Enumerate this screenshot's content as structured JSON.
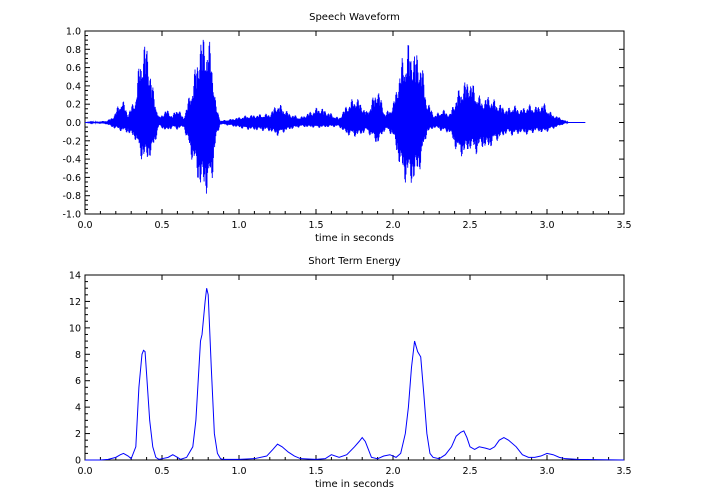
{
  "colors": {
    "series": "#0000ff",
    "axes": "#000000",
    "background": "#ffffff"
  },
  "chart_data": [
    {
      "type": "line",
      "title": "Speech Waveform",
      "xlabel": "time in seconds",
      "ylabel": "",
      "xlim": [
        0,
        3.5
      ],
      "ylim": [
        -1.0,
        1.0
      ],
      "grid": false,
      "xticks": [
        "0.0",
        "0.5",
        "1.0",
        "1.5",
        "2.0",
        "2.5",
        "3.0",
        "3.5"
      ],
      "yticks": [
        "1.0",
        "0.8",
        "0.6",
        "0.4",
        "0.2",
        "0.0",
        "-0.2",
        "-0.4",
        "-0.6",
        "-0.8",
        "-1.0"
      ],
      "envelope": {
        "t": [
          0.0,
          0.14,
          0.18,
          0.24,
          0.28,
          0.33,
          0.36,
          0.4,
          0.44,
          0.48,
          0.53,
          0.57,
          0.6,
          0.64,
          0.7,
          0.75,
          0.78,
          0.82,
          0.85,
          0.88,
          0.95,
          1.05,
          1.2,
          1.25,
          1.28,
          1.33,
          1.4,
          1.52,
          1.6,
          1.65,
          1.7,
          1.76,
          1.79,
          1.83,
          1.9,
          1.95,
          2.0,
          2.06,
          2.1,
          2.14,
          2.18,
          2.22,
          2.27,
          2.32,
          2.37,
          2.42,
          2.46,
          2.5,
          2.54,
          2.58,
          2.62,
          2.66,
          2.7,
          2.74,
          2.78,
          2.83,
          2.88,
          2.93,
          2.98,
          3.03,
          3.08,
          3.11,
          3.14,
          3.25
        ],
        "upper": [
          0.0,
          0.02,
          0.06,
          0.28,
          0.1,
          0.3,
          0.8,
          0.92,
          0.4,
          0.06,
          0.15,
          0.08,
          0.18,
          0.05,
          0.45,
          0.95,
          0.98,
          0.85,
          0.2,
          0.02,
          0.04,
          0.08,
          0.1,
          0.22,
          0.18,
          0.1,
          0.06,
          0.18,
          0.1,
          0.05,
          0.2,
          0.3,
          0.22,
          0.12,
          0.4,
          0.1,
          0.2,
          0.72,
          0.88,
          0.8,
          0.75,
          0.25,
          0.08,
          0.15,
          0.1,
          0.34,
          0.45,
          0.5,
          0.35,
          0.25,
          0.3,
          0.25,
          0.2,
          0.15,
          0.2,
          0.15,
          0.2,
          0.18,
          0.22,
          0.1,
          0.06,
          0.03,
          0.0,
          0.0
        ],
        "lower": [
          0.0,
          -0.02,
          -0.06,
          -0.1,
          -0.12,
          -0.2,
          -0.4,
          -0.44,
          -0.35,
          -0.04,
          -0.1,
          -0.06,
          -0.08,
          -0.05,
          -0.45,
          -0.75,
          -0.8,
          -0.75,
          -0.2,
          -0.02,
          -0.04,
          -0.08,
          -0.1,
          -0.15,
          -0.12,
          -0.08,
          -0.05,
          -0.06,
          -0.05,
          -0.05,
          -0.14,
          -0.16,
          -0.14,
          -0.1,
          -0.25,
          -0.08,
          -0.15,
          -0.62,
          -0.7,
          -0.68,
          -0.5,
          -0.12,
          -0.06,
          -0.1,
          -0.12,
          -0.36,
          -0.38,
          -0.3,
          -0.35,
          -0.28,
          -0.3,
          -0.22,
          -0.18,
          -0.12,
          -0.15,
          -0.12,
          -0.14,
          -0.1,
          -0.12,
          -0.08,
          -0.04,
          -0.02,
          0.0,
          0.0
        ]
      }
    },
    {
      "type": "line",
      "title": "Short Term Energy",
      "xlabel": "time in seconds",
      "ylabel": "",
      "xlim": [
        0,
        3.5
      ],
      "ylim": [
        0,
        14
      ],
      "grid": false,
      "xticks": [
        "0.0",
        "0.5",
        "1.0",
        "1.5",
        "2.0",
        "2.5",
        "3.0",
        "3.5"
      ],
      "yticks": [
        "14",
        "12",
        "10",
        "8",
        "6",
        "4",
        "2",
        "0"
      ],
      "x": [
        0.0,
        0.1,
        0.15,
        0.2,
        0.23,
        0.25,
        0.28,
        0.3,
        0.33,
        0.35,
        0.37,
        0.38,
        0.39,
        0.4,
        0.42,
        0.44,
        0.46,
        0.48,
        0.5,
        0.54,
        0.57,
        0.6,
        0.62,
        0.66,
        0.7,
        0.72,
        0.74,
        0.75,
        0.76,
        0.78,
        0.79,
        0.8,
        0.82,
        0.84,
        0.86,
        0.88,
        0.9,
        1.0,
        1.1,
        1.18,
        1.22,
        1.25,
        1.28,
        1.32,
        1.36,
        1.4,
        1.5,
        1.56,
        1.6,
        1.65,
        1.7,
        1.75,
        1.78,
        1.8,
        1.82,
        1.86,
        1.9,
        1.94,
        1.98,
        2.02,
        2.05,
        2.08,
        2.1,
        2.12,
        2.14,
        2.16,
        2.18,
        2.2,
        2.22,
        2.24,
        2.26,
        2.3,
        2.34,
        2.38,
        2.41,
        2.44,
        2.46,
        2.48,
        2.5,
        2.53,
        2.56,
        2.6,
        2.63,
        2.66,
        2.69,
        2.72,
        2.75,
        2.8,
        2.84,
        2.88,
        2.92,
        2.96,
        3.0,
        3.04,
        3.08,
        3.12,
        3.2,
        3.5
      ],
      "y": [
        0.0,
        0.0,
        0.05,
        0.2,
        0.4,
        0.5,
        0.3,
        0.1,
        1.0,
        5.5,
        8.0,
        8.3,
        8.2,
        6.5,
        3.0,
        1.0,
        0.2,
        0.05,
        0.1,
        0.2,
        0.4,
        0.2,
        0.05,
        0.2,
        1.0,
        3.0,
        7.0,
        9.0,
        9.5,
        12.0,
        13.0,
        12.5,
        7.0,
        2.0,
        0.5,
        0.1,
        0.05,
        0.05,
        0.1,
        0.3,
        0.8,
        1.2,
        1.0,
        0.6,
        0.3,
        0.1,
        0.05,
        0.1,
        0.4,
        0.2,
        0.4,
        1.0,
        1.4,
        1.7,
        1.4,
        0.2,
        0.1,
        0.3,
        0.4,
        0.2,
        0.5,
        2.0,
        4.0,
        7.0,
        9.0,
        8.2,
        7.8,
        5.0,
        2.0,
        0.5,
        0.2,
        0.1,
        0.4,
        1.0,
        1.8,
        2.1,
        2.2,
        1.7,
        1.0,
        0.8,
        1.0,
        0.9,
        0.8,
        1.0,
        1.5,
        1.7,
        1.5,
        1.0,
        0.4,
        0.2,
        0.2,
        0.3,
        0.5,
        0.4,
        0.2,
        0.1,
        0.05,
        0.0
      ]
    }
  ]
}
